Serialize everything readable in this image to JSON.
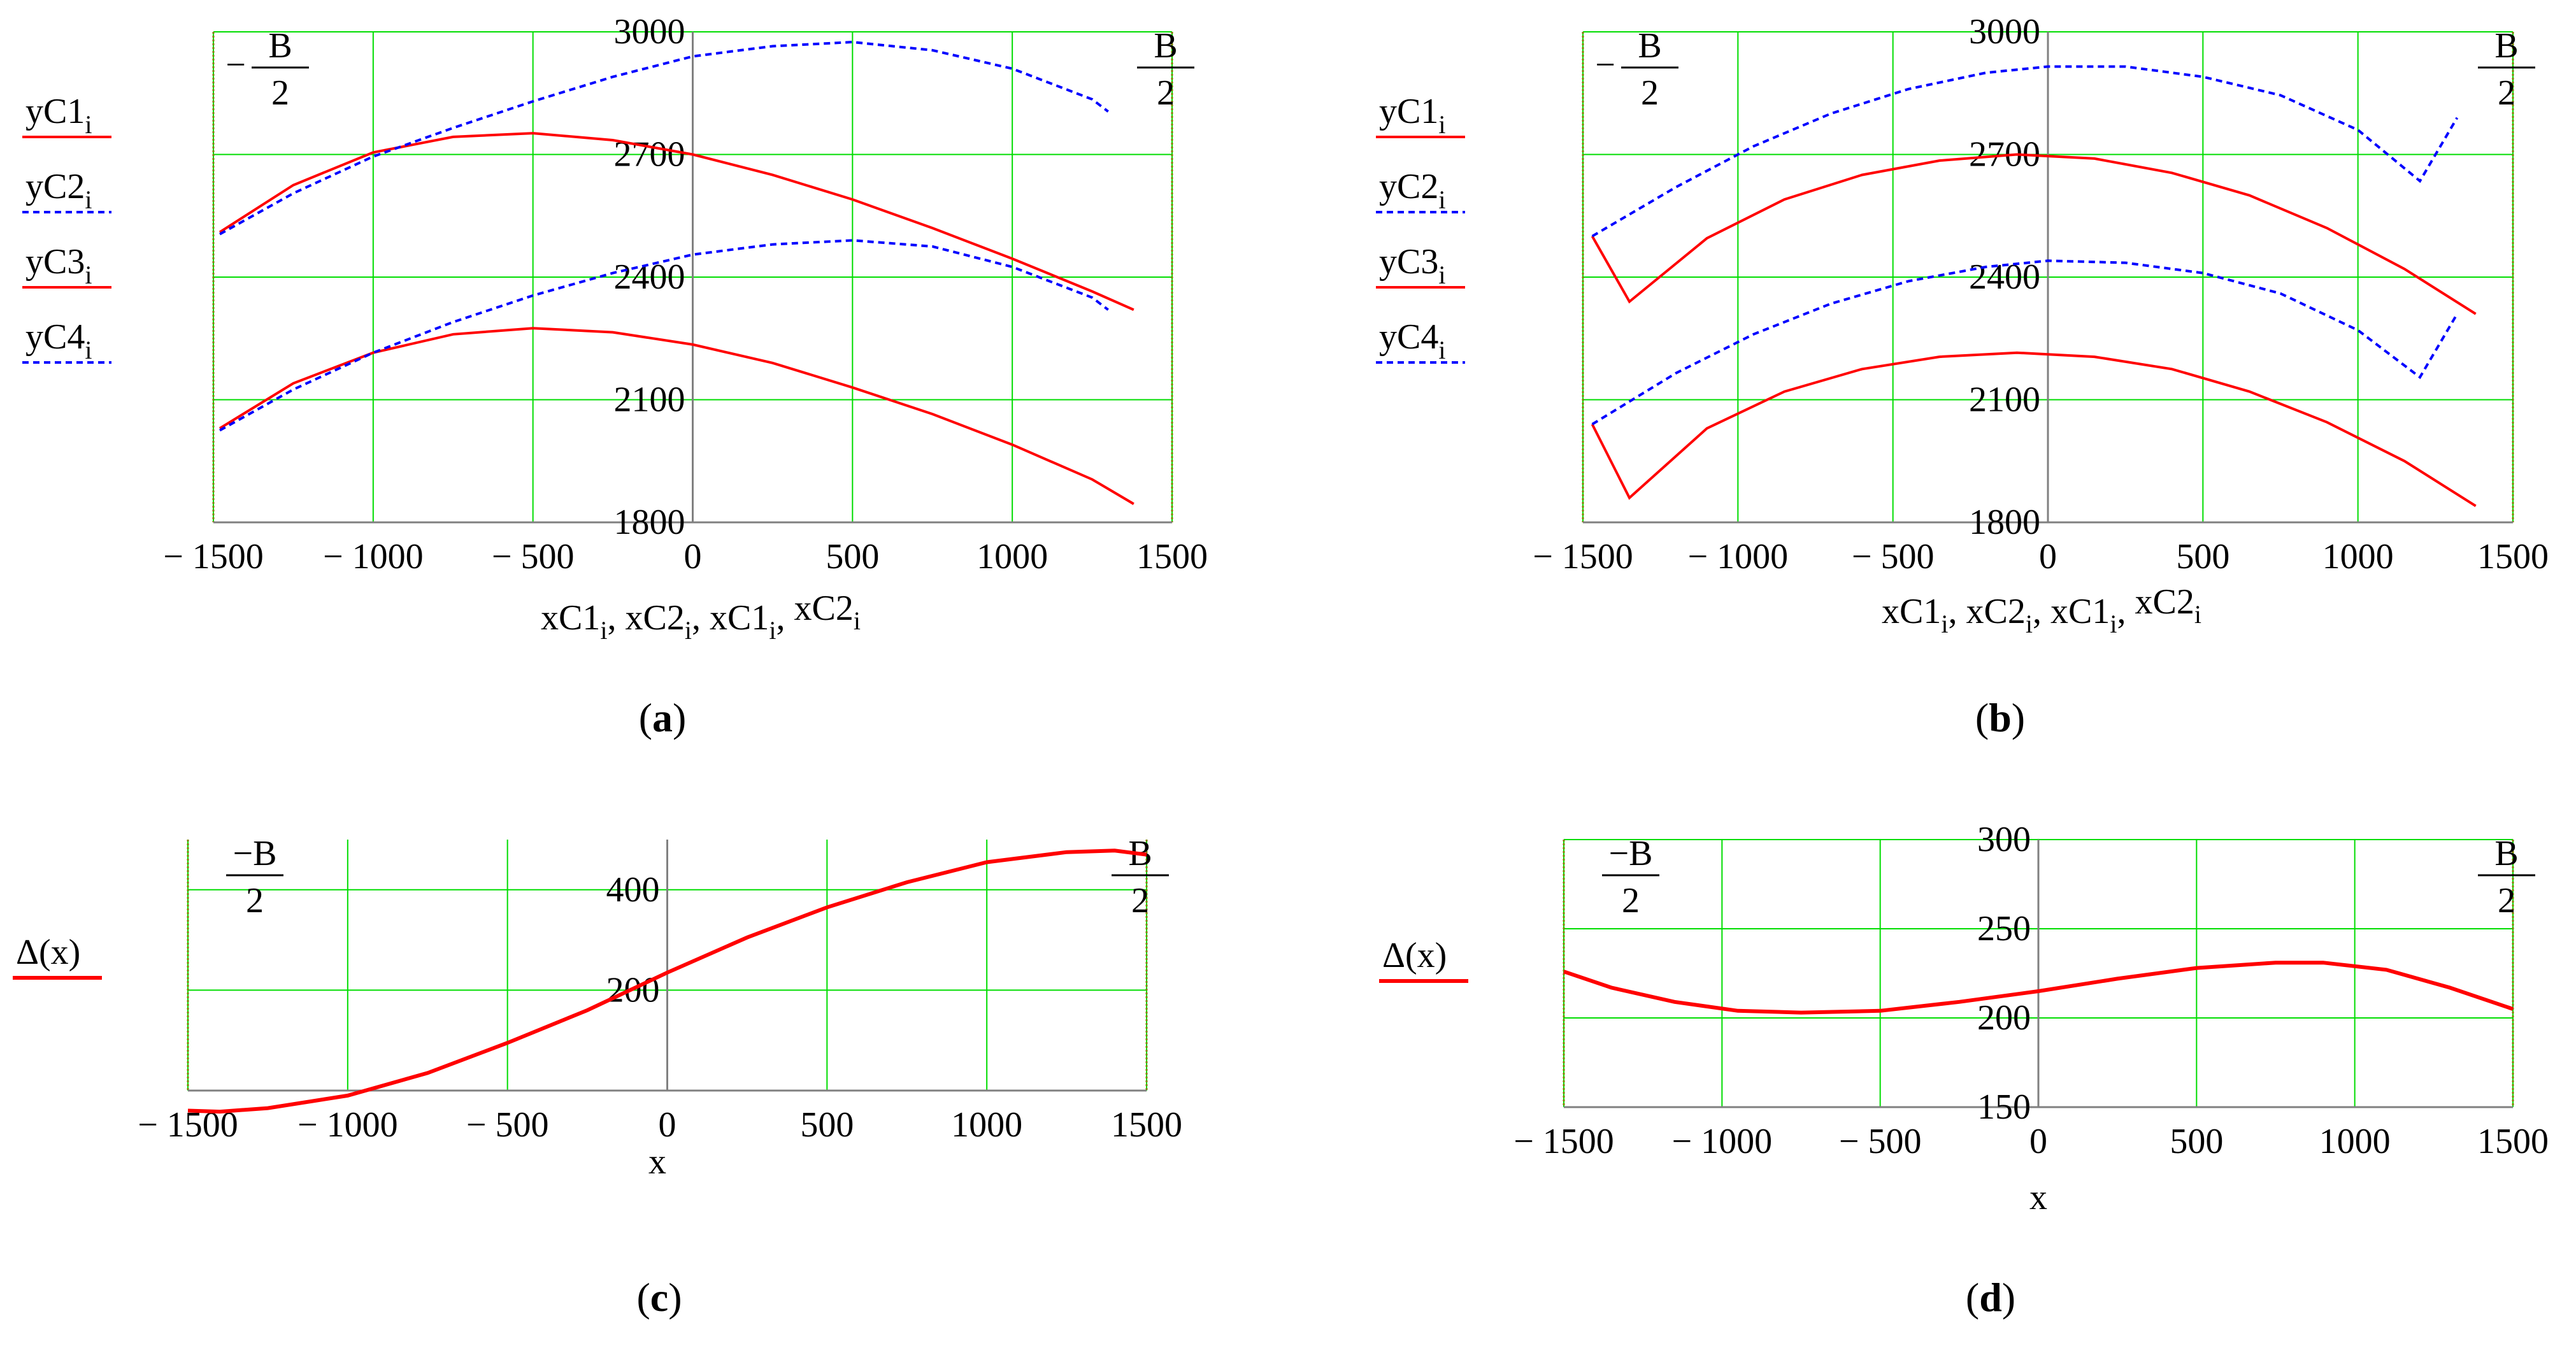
{
  "colors": {
    "solid": "#ff0000",
    "dashed": "#0000ff",
    "grid": "#00dd00",
    "frame": "#808000",
    "axis": "#808080",
    "text": "#000000"
  },
  "chart_data": [
    {
      "id": "a",
      "type": "line",
      "panel_label": "a",
      "xlim": [
        -1500,
        1500
      ],
      "ylim": [
        1800,
        3000
      ],
      "xticks": [
        -1500,
        -1000,
        -500,
        0,
        500,
        1000,
        1500
      ],
      "yticks": [
        1800,
        2100,
        2400,
        2700,
        3000
      ],
      "xtick_labels": [
        "− 1500",
        "− 1000",
        "− 500",
        "0",
        "500",
        "1000",
        "1500"
      ],
      "ytick_labels": [
        "1800",
        "2100",
        "2400",
        "2700",
        "3000"
      ],
      "xlabel": {
        "parts": [
          [
            "xC1",
            "i"
          ],
          [
            "xC2",
            "i"
          ],
          [
            "xC1",
            "i"
          ],
          [
            "xC2",
            "i"
          ]
        ],
        "sep": ", "
      },
      "left_marker": {
        "prefix": "−",
        "numerator": "B",
        "denominator": "2"
      },
      "right_marker": {
        "prefix": "",
        "numerator": "B",
        "denominator": "2"
      },
      "legend": [
        {
          "base": "yC1",
          "sub": "i",
          "style": "solid"
        },
        {
          "base": "yC2",
          "sub": "i",
          "style": "dashed"
        },
        {
          "base": "yC3",
          "sub": "i",
          "style": "solid"
        },
        {
          "base": "yC4",
          "sub": "i",
          "style": "dashed"
        }
      ],
      "series": [
        {
          "name": "yC1",
          "style": "solid",
          "x": [
            -1480,
            -1250,
            -1000,
            -750,
            -500,
            -250,
            0,
            250,
            500,
            750,
            1000,
            1250,
            1380
          ],
          "y": [
            2510,
            2625,
            2705,
            2743,
            2752,
            2735,
            2700,
            2650,
            2590,
            2520,
            2445,
            2365,
            2320
          ]
        },
        {
          "name": "yC2",
          "style": "dashed",
          "x": [
            -1480,
            -1250,
            -1000,
            -750,
            -500,
            -250,
            0,
            250,
            500,
            750,
            1000,
            1250,
            1300
          ],
          "y": [
            2505,
            2605,
            2695,
            2765,
            2830,
            2890,
            2940,
            2965,
            2975,
            2955,
            2910,
            2835,
            2805
          ]
        },
        {
          "name": "yC3",
          "style": "solid",
          "x": [
            -1480,
            -1250,
            -1000,
            -750,
            -500,
            -250,
            0,
            250,
            500,
            750,
            1000,
            1250,
            1380
          ],
          "y": [
            2030,
            2140,
            2215,
            2260,
            2275,
            2265,
            2235,
            2190,
            2130,
            2065,
            1990,
            1905,
            1845
          ]
        },
        {
          "name": "yC4",
          "style": "dashed",
          "x": [
            -1480,
            -1250,
            -1000,
            -750,
            -500,
            -250,
            0,
            250,
            500,
            750,
            1000,
            1250,
            1300
          ],
          "y": [
            2025,
            2125,
            2215,
            2290,
            2355,
            2410,
            2455,
            2480,
            2490,
            2475,
            2425,
            2350,
            2320
          ]
        }
      ]
    },
    {
      "id": "b",
      "type": "line",
      "panel_label": "b",
      "xlim": [
        -1500,
        1500
      ],
      "ylim": [
        1800,
        3000
      ],
      "xticks": [
        -1500,
        -1000,
        -500,
        0,
        500,
        1000,
        1500
      ],
      "yticks": [
        1800,
        2100,
        2400,
        2700,
        3000
      ],
      "xtick_labels": [
        "− 1500",
        "− 1000",
        "− 500",
        "0",
        "500",
        "1000",
        "1500"
      ],
      "ytick_labels": [
        "1800",
        "2100",
        "2400",
        "2700",
        "3000"
      ],
      "xlabel": {
        "parts": [
          [
            "xC1",
            "i"
          ],
          [
            "xC2",
            "i"
          ],
          [
            "xC1",
            "i"
          ],
          [
            "xC2",
            "i"
          ]
        ],
        "sep": ", "
      },
      "left_marker": {
        "prefix": "−",
        "numerator": "B",
        "denominator": "2"
      },
      "right_marker": {
        "prefix": "",
        "numerator": "B",
        "denominator": "2"
      },
      "legend": [
        {
          "base": "yC1",
          "sub": "i",
          "style": "solid"
        },
        {
          "base": "yC2",
          "sub": "i",
          "style": "dashed"
        },
        {
          "base": "yC3",
          "sub": "i",
          "style": "solid"
        },
        {
          "base": "yC4",
          "sub": "i",
          "style": "dashed"
        }
      ],
      "series": [
        {
          "name": "yC1",
          "style": "solid",
          "x": [
            -1470,
            -1350,
            -1100,
            -850,
            -600,
            -350,
            -100,
            150,
            400,
            650,
            900,
            1150,
            1380
          ],
          "y": [
            2500,
            2340,
            2495,
            2590,
            2650,
            2685,
            2700,
            2690,
            2655,
            2600,
            2520,
            2420,
            2310
          ]
        },
        {
          "name": "yC2",
          "style": "dashed",
          "x": [
            -1470,
            -1200,
            -950,
            -700,
            -450,
            -200,
            0,
            250,
            500,
            750,
            1000,
            1200,
            1320
          ],
          "y": [
            2500,
            2620,
            2720,
            2800,
            2860,
            2900,
            2915,
            2915,
            2890,
            2845,
            2760,
            2635,
            2790
          ]
        },
        {
          "name": "yC3",
          "style": "solid",
          "x": [
            -1470,
            -1350,
            -1100,
            -850,
            -600,
            -350,
            -100,
            150,
            400,
            650,
            900,
            1150,
            1380
          ],
          "y": [
            2040,
            1860,
            2030,
            2120,
            2175,
            2205,
            2215,
            2205,
            2175,
            2120,
            2045,
            1950,
            1840
          ]
        },
        {
          "name": "yC4",
          "style": "dashed",
          "x": [
            -1470,
            -1200,
            -950,
            -700,
            -450,
            -200,
            0,
            250,
            500,
            750,
            1000,
            1200,
            1320
          ],
          "y": [
            2040,
            2165,
            2260,
            2335,
            2390,
            2425,
            2440,
            2435,
            2410,
            2360,
            2270,
            2155,
            2310
          ]
        }
      ]
    },
    {
      "id": "c",
      "type": "line",
      "panel_label": "c",
      "xlim": [
        -1500,
        1500
      ],
      "ylim": [
        0,
        500
      ],
      "xticks": [
        -1500,
        -1000,
        -500,
        0,
        500,
        1000,
        1500
      ],
      "yticks": [
        0,
        200,
        400
      ],
      "xtick_labels": [
        "− 1500",
        "− 1000",
        "− 500",
        "0",
        "500",
        "1000",
        "1500"
      ],
      "ytick_labels": [
        "",
        "200",
        "400"
      ],
      "xlabel": {
        "text": "x"
      },
      "left_marker": {
        "prefix": "−",
        "numerator": "B",
        "denominator": "2",
        "prefix_in_numerator": true
      },
      "right_marker": {
        "prefix": "",
        "numerator": "B",
        "denominator": "2"
      },
      "legend": [
        {
          "base": "Δ(x)",
          "sub": "",
          "style": "solid"
        }
      ],
      "series": [
        {
          "name": "Δ(x)",
          "style": "solid",
          "x": [
            -1500,
            -1400,
            -1250,
            -1000,
            -750,
            -500,
            -250,
            0,
            250,
            500,
            750,
            1000,
            1250,
            1400,
            1500
          ],
          "y": [
            -40,
            -42,
            -35,
            -10,
            35,
            95,
            160,
            235,
            305,
            365,
            415,
            455,
            475,
            478,
            470
          ]
        }
      ]
    },
    {
      "id": "d",
      "type": "line",
      "panel_label": "d",
      "xlim": [
        -1500,
        1500
      ],
      "ylim": [
        150,
        300
      ],
      "xticks": [
        -1500,
        -1000,
        -500,
        0,
        500,
        1000,
        1500
      ],
      "yticks": [
        150,
        200,
        250,
        300
      ],
      "xtick_labels": [
        "− 1500",
        "− 1000",
        "− 500",
        "0",
        "500",
        "1000",
        "1500"
      ],
      "ytick_labels": [
        "150",
        "200",
        "250",
        "300"
      ],
      "xlabel": {
        "text": "x"
      },
      "left_marker": {
        "prefix": "−",
        "numerator": "B",
        "denominator": "2",
        "prefix_in_numerator": true
      },
      "right_marker": {
        "prefix": "",
        "numerator": "B",
        "denominator": "2"
      },
      "legend": [
        {
          "base": "Δ(x)",
          "sub": "",
          "style": "solid"
        }
      ],
      "series": [
        {
          "name": "Δ(x)",
          "style": "solid",
          "x": [
            -1500,
            -1350,
            -1150,
            -950,
            -750,
            -500,
            -250,
            0,
            250,
            500,
            750,
            900,
            1100,
            1300,
            1500
          ],
          "y": [
            226,
            217,
            209,
            204,
            203,
            204,
            209,
            215,
            222,
            228,
            231,
            231,
            227,
            217,
            205
          ]
        }
      ]
    }
  ]
}
